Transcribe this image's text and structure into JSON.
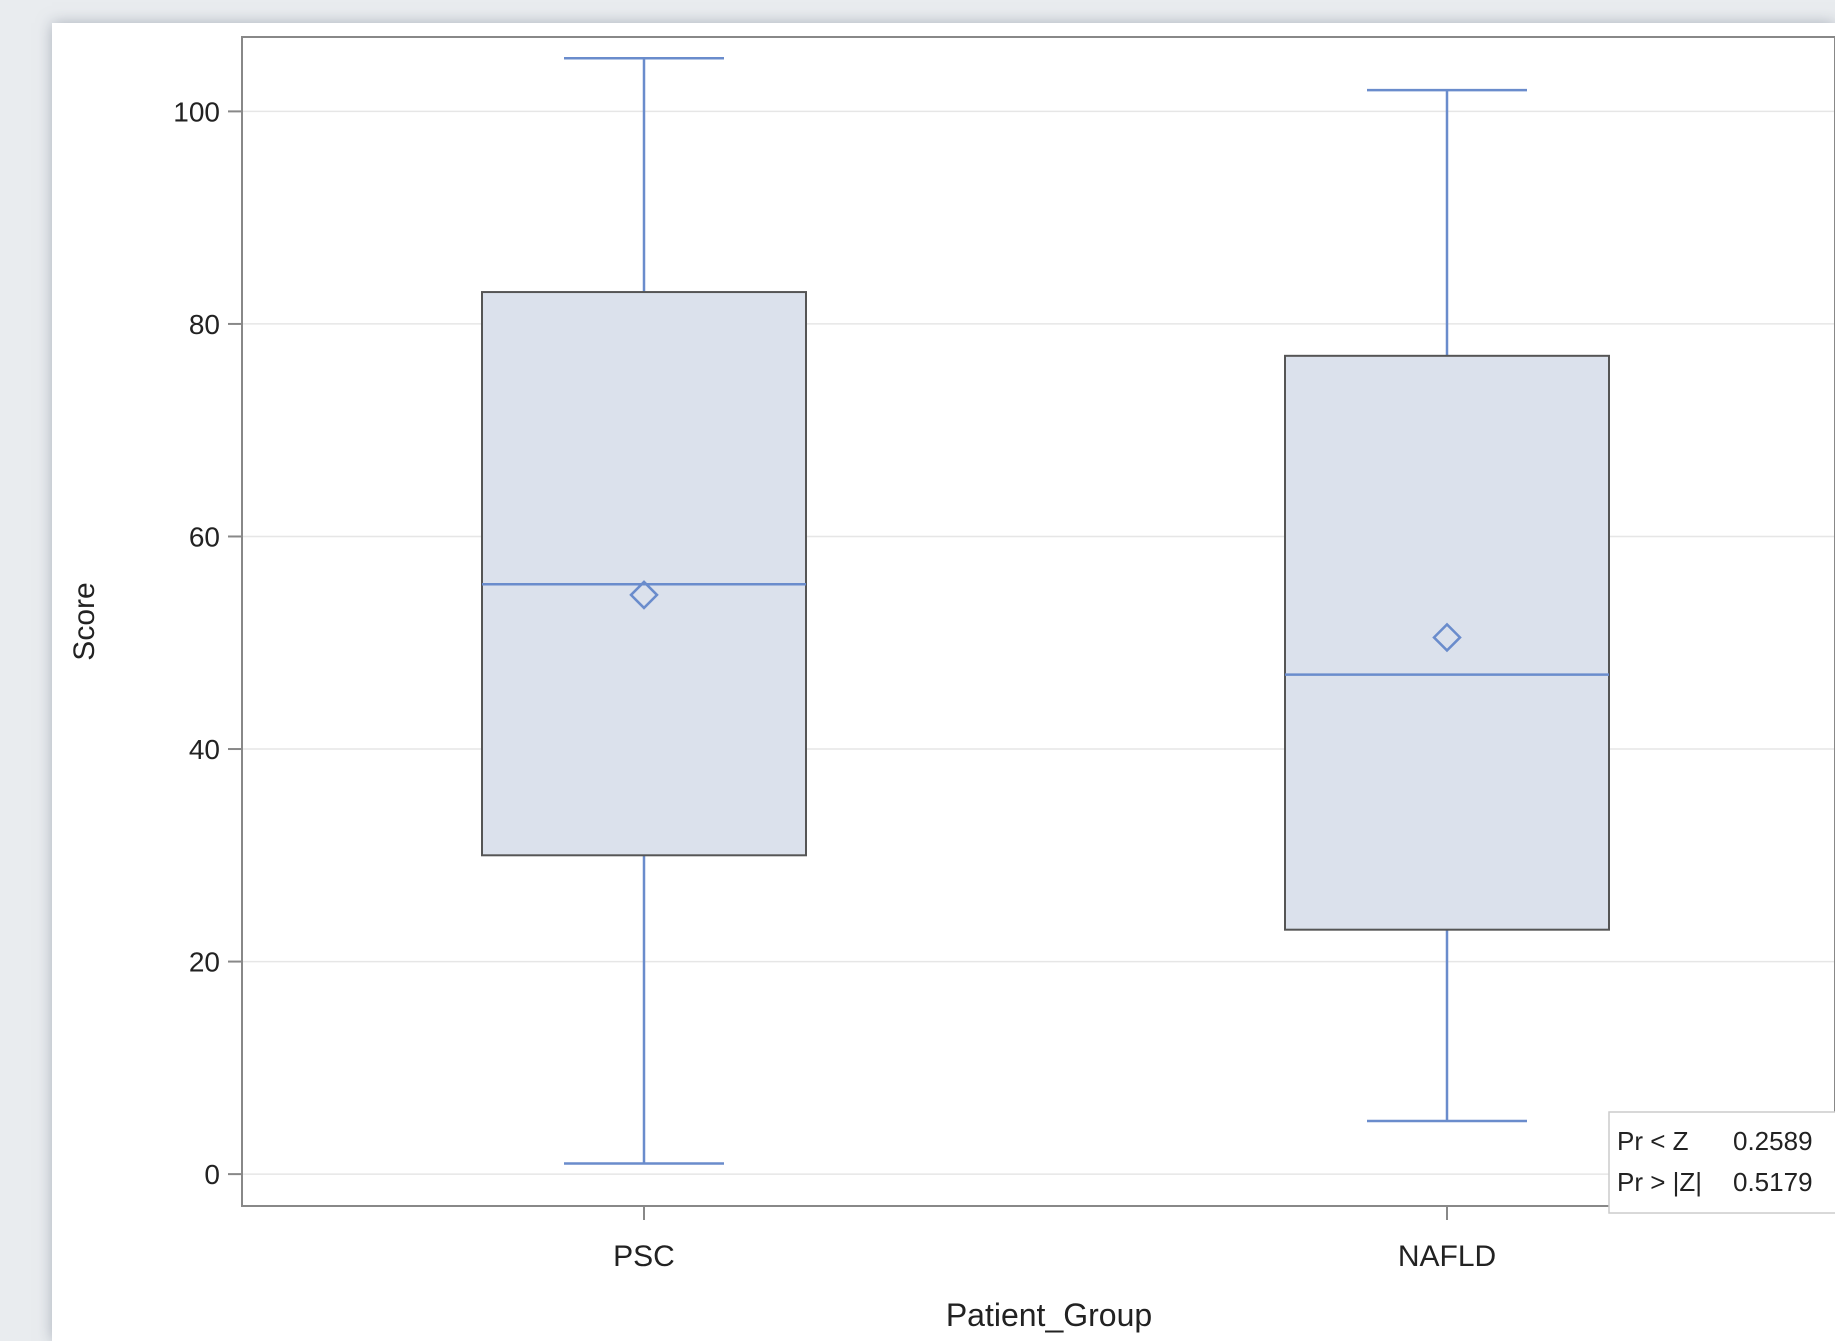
{
  "chart_data": {
    "type": "box",
    "xlabel": "Patient_Group",
    "ylabel": "Score",
    "categories": [
      "PSC",
      "NAFLD"
    ],
    "ylim": [
      -3,
      107
    ],
    "yticks": [
      0,
      20,
      40,
      60,
      80,
      100
    ],
    "grid": true,
    "boxes": [
      {
        "category": "PSC",
        "min": 1,
        "q1": 30,
        "median": 55.5,
        "q3": 83,
        "max": 105,
        "mean": 54.5
      },
      {
        "category": "NAFLD",
        "min": 5,
        "q1": 23,
        "median": 47,
        "q3": 77,
        "max": 102,
        "mean": 50.5
      }
    ],
    "inset_table": {
      "rows": [
        {
          "label": "Pr < Z",
          "value": "0.2589"
        },
        {
          "label": "Pr > |Z|",
          "value": "0.5179"
        }
      ]
    },
    "colors": {
      "box_fill": "#dbe1ec",
      "box_edge": "#555555",
      "line": "#6a8ccc",
      "grid": "#e6e6e6",
      "axis": "#888888",
      "text": "#222222"
    }
  }
}
